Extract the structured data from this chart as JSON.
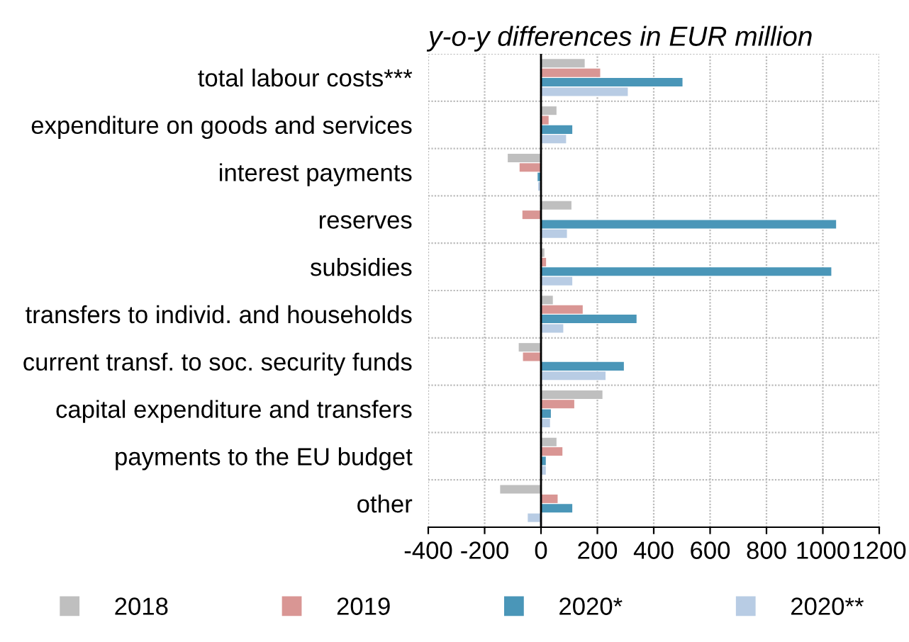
{
  "chart_data": {
    "type": "bar",
    "orientation": "horizontal",
    "title": "y-o-y differences in EUR million",
    "categories": [
      "total labour costs***",
      "expenditure on goods and services",
      "interest payments",
      "reserves",
      "subsidies",
      "transfers to individ. and households",
      "current transf. to soc. security funds",
      "capital expenditure and transfers",
      "payments to the EU budget",
      "other"
    ],
    "series": [
      {
        "name": "2018",
        "color": "#bfbfbf",
        "values": [
          155,
          55,
          -118,
          108,
          12,
          42,
          -79,
          218,
          55,
          -145
        ]
      },
      {
        "name": "2019",
        "color": "#d99694",
        "values": [
          210,
          27,
          -76,
          -66,
          18,
          148,
          -64,
          118,
          76,
          59
        ]
      },
      {
        "name": "2020*",
        "color": "#4a96b8",
        "values": [
          502,
          111,
          -12,
          1047,
          1030,
          339,
          294,
          35,
          17,
          111
        ]
      },
      {
        "name": "2020**",
        "color": "#b8cce4",
        "values": [
          308,
          89,
          -10,
          92,
          111,
          79,
          229,
          32,
          17,
          -47
        ]
      }
    ],
    "xlim": [
      -400,
      1200
    ],
    "xticks": [
      -400,
      -200,
      0,
      200,
      400,
      600,
      800,
      1000,
      1200
    ],
    "grid": true,
    "legend": "bottom"
  }
}
